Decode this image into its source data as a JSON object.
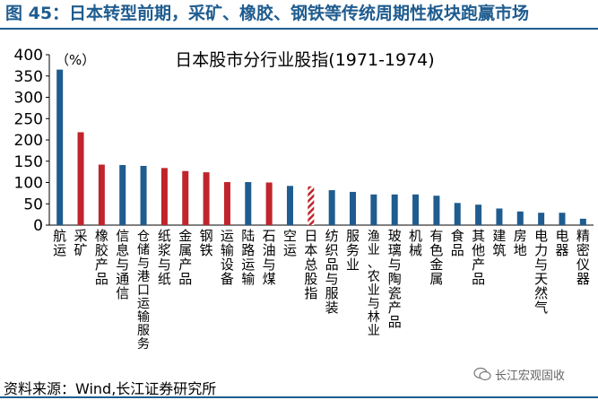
{
  "figure": {
    "title": "图 45：日本转型前期，采矿、橡胶、钢铁等传统周期性板块跑赢市场",
    "source": "资料来源：Wind,长江证券研究所",
    "watermark": "长江宏观固收"
  },
  "colors": {
    "blue": "#1f5c8f",
    "red": "#c0242c",
    "hatch_bg": "#ffffff",
    "accent": "#1f5c8f"
  },
  "chart_data": {
    "type": "bar",
    "title": "日本股市分行业股指(1971-1974)",
    "unit_label": "（%）",
    "ylim": [
      0,
      400
    ],
    "yticks": [
      0,
      50,
      100,
      150,
      200,
      250,
      300,
      350,
      400
    ],
    "grid": false,
    "categories": [
      "航运",
      "采矿",
      "橡胶产品",
      "信息与通信",
      "仓储与港口运输服务",
      "纸浆与纸",
      "金属产品",
      "钢铁",
      "运输设备",
      "陆路运输",
      "石油与煤",
      "空运",
      "日本总股指",
      "纺织品与服装",
      "服务业",
      "渔业、农业与林业",
      "玻璃与陶瓷产品",
      "机械",
      "有色金属",
      "食品",
      "其他产品",
      "建筑",
      "房地",
      "电力与天然气",
      "电器",
      "精密仪器"
    ],
    "values": [
      365,
      218,
      142,
      141,
      139,
      134,
      127,
      124,
      101,
      101,
      100,
      92,
      91,
      82,
      78,
      72,
      72,
      72,
      69,
      52,
      48,
      39,
      32,
      29,
      29,
      15
    ],
    "bar_styles": [
      "blue",
      "red",
      "red",
      "blue",
      "blue",
      "red",
      "red",
      "red",
      "red",
      "blue",
      "red",
      "blue",
      "hatched-red",
      "blue",
      "blue",
      "blue",
      "blue",
      "blue",
      "blue",
      "blue",
      "blue",
      "blue",
      "blue",
      "blue",
      "blue",
      "blue"
    ]
  }
}
